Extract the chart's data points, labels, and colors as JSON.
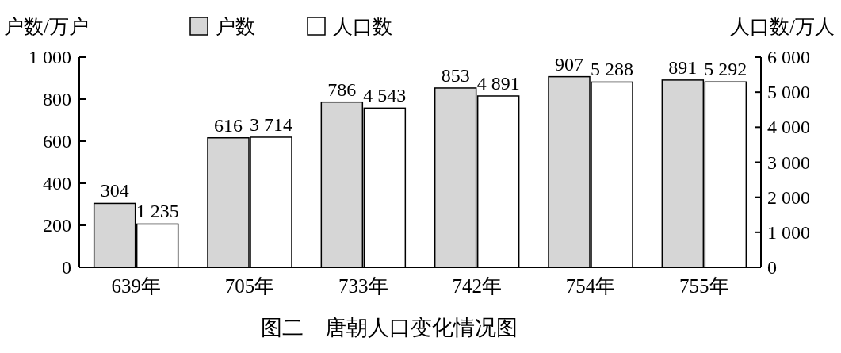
{
  "chart_data": {
    "type": "bar",
    "title": "图二　唐朝人口变化情况图",
    "ylabel": "户数/万户",
    "y2label": "人口数/万人",
    "legend": "top",
    "grid": false,
    "categories": [
      "639年",
      "705年",
      "733年",
      "742年",
      "754年",
      "755年"
    ],
    "series": [
      {
        "name": "户数",
        "color": "#d6d6d6",
        "values": [
          304,
          616,
          786,
          853,
          907,
          891
        ],
        "value_labels": [
          "304",
          "616",
          "786",
          "853",
          "907",
          "891"
        ]
      },
      {
        "name": "人口数",
        "color": "#ffffff",
        "axis": "y2",
        "values": [
          1235,
          3714,
          4543,
          4891,
          5288,
          5292
        ],
        "value_labels": [
          "1 235",
          "3 714",
          "4 543",
          "4 891",
          "5 288",
          "5 292"
        ]
      }
    ],
    "ylim": [
      0,
      1000
    ],
    "yticks": [
      0,
      200,
      400,
      600,
      800,
      {
        "value": 1000,
        "label": "1 000"
      }
    ],
    "y2lim": [
      0,
      6000
    ],
    "y2ticks": [
      0,
      {
        "value": 1000,
        "label": "1 000"
      },
      {
        "value": 2000,
        "label": "2 000"
      },
      {
        "value": 3000,
        "label": "3 000"
      },
      {
        "value": 4000,
        "label": "4 000"
      },
      {
        "value": 5000,
        "label": "5 000"
      },
      {
        "value": 6000,
        "label": "6 000"
      }
    ]
  }
}
